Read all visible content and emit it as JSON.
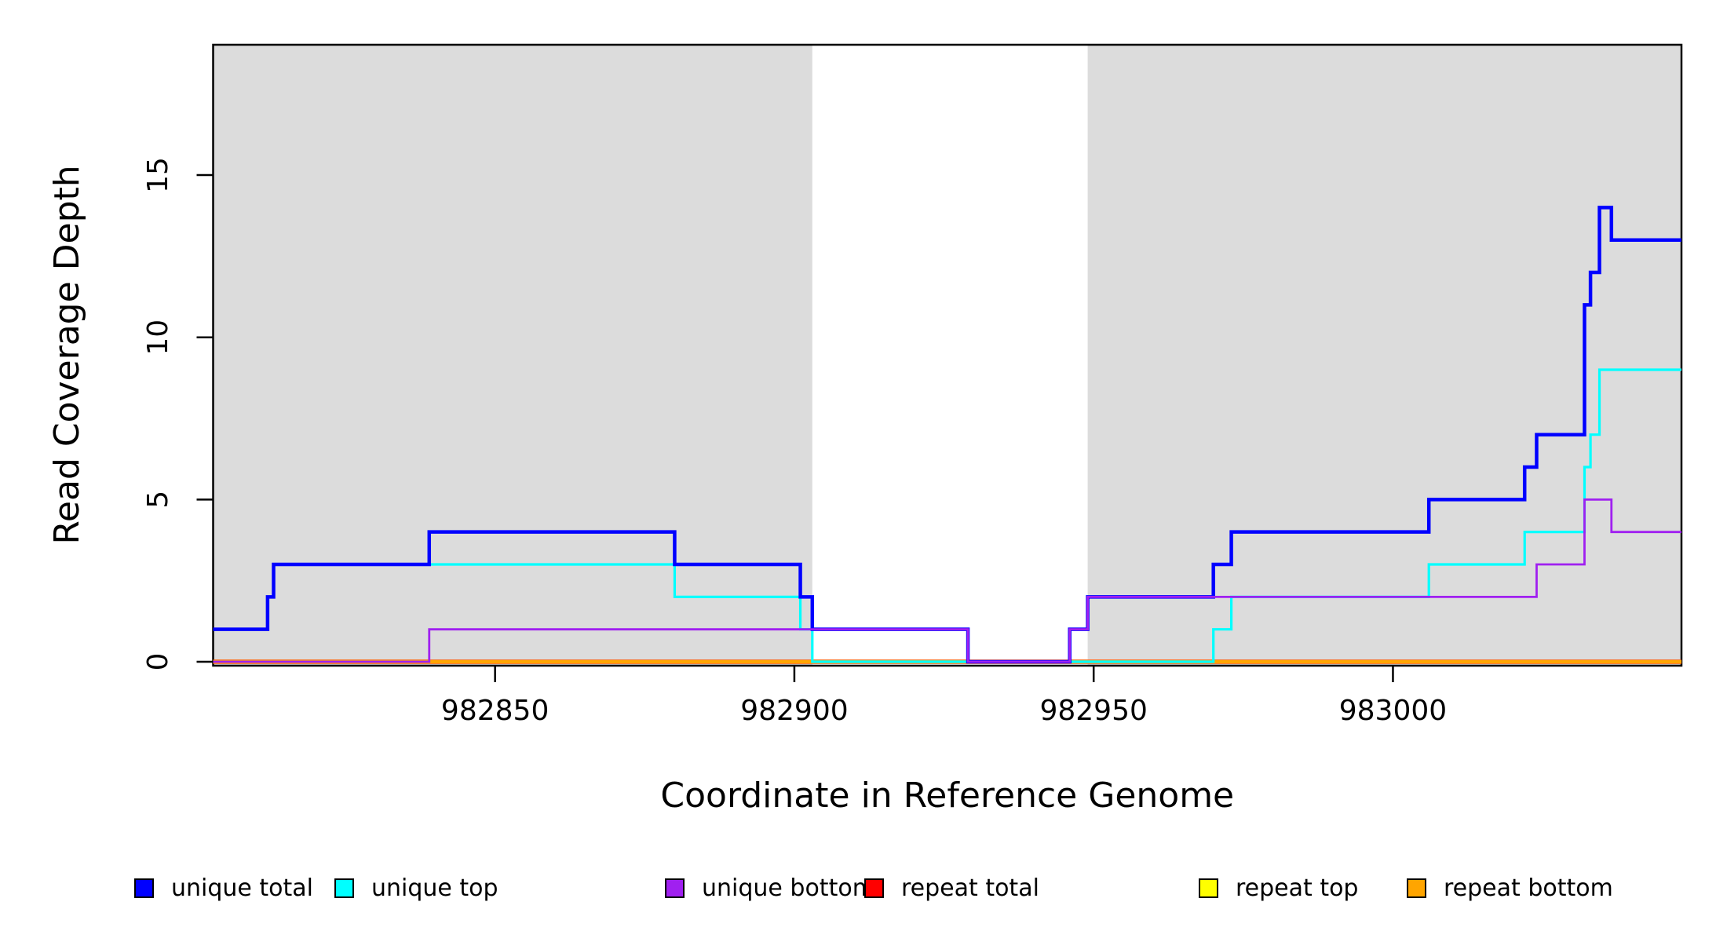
{
  "figure": {
    "kind": "R step plot of read coverage depth across a reference genome region"
  },
  "chart_data": {
    "type": "line",
    "subtype": "step",
    "title": "",
    "xlabel": "Coordinate in Reference Genome",
    "ylabel": "Read Coverage Depth",
    "xlim": [
      982802.9,
      983048.2
    ],
    "ylim": [
      0,
      19
    ],
    "x_ticks": [
      982850,
      982900,
      982950,
      983000
    ],
    "y_ticks": [
      0,
      5,
      10,
      15
    ],
    "grid": false,
    "plot_background": "#ffffff",
    "shading_color": "#DCDCDC",
    "shaded_regions": [
      [
        982802.9,
        982903
      ],
      [
        982949,
        983048.2
      ]
    ],
    "unshaded_gap": [
      982903,
      982949
    ],
    "series": [
      {
        "name": "repeat total",
        "color": "#FF0000",
        "lwd": 5.5,
        "points": [
          [
            982802.9,
            0
          ],
          [
            983048.2,
            0
          ]
        ]
      },
      {
        "name": "repeat top",
        "color": "#FFFF00",
        "lwd": 4.5,
        "points": [
          [
            982802.9,
            0
          ],
          [
            983048.2,
            0
          ]
        ]
      },
      {
        "name": "repeat bottom",
        "color": "#FFA500",
        "lwd": 4.2,
        "points": [
          [
            982802.9,
            0
          ],
          [
            983048.2,
            0
          ]
        ]
      },
      {
        "name": "unique top",
        "color": "#00FFFF",
        "lwd": 3.2,
        "points": [
          [
            982802.9,
            1
          ],
          [
            982812,
            2
          ],
          [
            982813,
            3
          ],
          [
            982880,
            2
          ],
          [
            982901,
            1
          ],
          [
            982903,
            0
          ],
          [
            982970,
            1
          ],
          [
            982973,
            2
          ],
          [
            983006,
            3
          ],
          [
            983022,
            4
          ],
          [
            983032,
            6
          ],
          [
            983033,
            7
          ],
          [
            983034.5,
            9
          ],
          [
            983048.2,
            9
          ]
        ]
      },
      {
        "name": "unique total",
        "color": "#0000FF",
        "lwd": 4.5,
        "points": [
          [
            982802.9,
            1
          ],
          [
            982812,
            2
          ],
          [
            982813,
            3
          ],
          [
            982839,
            4
          ],
          [
            982880,
            3
          ],
          [
            982901,
            2
          ],
          [
            982903,
            1
          ],
          [
            982929,
            0
          ],
          [
            982946,
            1
          ],
          [
            982949,
            2
          ],
          [
            982970,
            3
          ],
          [
            982973,
            4
          ],
          [
            983006,
            5
          ],
          [
            983022,
            6
          ],
          [
            983024,
            7
          ],
          [
            983032,
            11
          ],
          [
            983033,
            12
          ],
          [
            983034.5,
            14
          ],
          [
            983036.5,
            13
          ],
          [
            983048.2,
            13
          ]
        ]
      },
      {
        "name": "unique bottom",
        "color": "#A020F0",
        "lwd": 2.8,
        "points": [
          [
            982802.9,
            0
          ],
          [
            982839,
            1
          ],
          [
            982929,
            0
          ],
          [
            982946,
            1
          ],
          [
            982949,
            2
          ],
          [
            983024,
            3
          ],
          [
            983032,
            5
          ],
          [
            983036.5,
            4
          ],
          [
            983048.2,
            4
          ]
        ]
      }
    ],
    "legend": {
      "position": "bottom",
      "entries": [
        {
          "label": "unique total",
          "color": "#0000FF"
        },
        {
          "label": "unique top",
          "color": "#00FFFF"
        },
        {
          "label": "unique bottom",
          "color": "#A020F0"
        },
        {
          "label": "repeat total",
          "color": "#FF0000"
        },
        {
          "label": "repeat top",
          "color": "#FFFF00"
        },
        {
          "label": "repeat bottom",
          "color": "#FFA500"
        }
      ]
    }
  }
}
